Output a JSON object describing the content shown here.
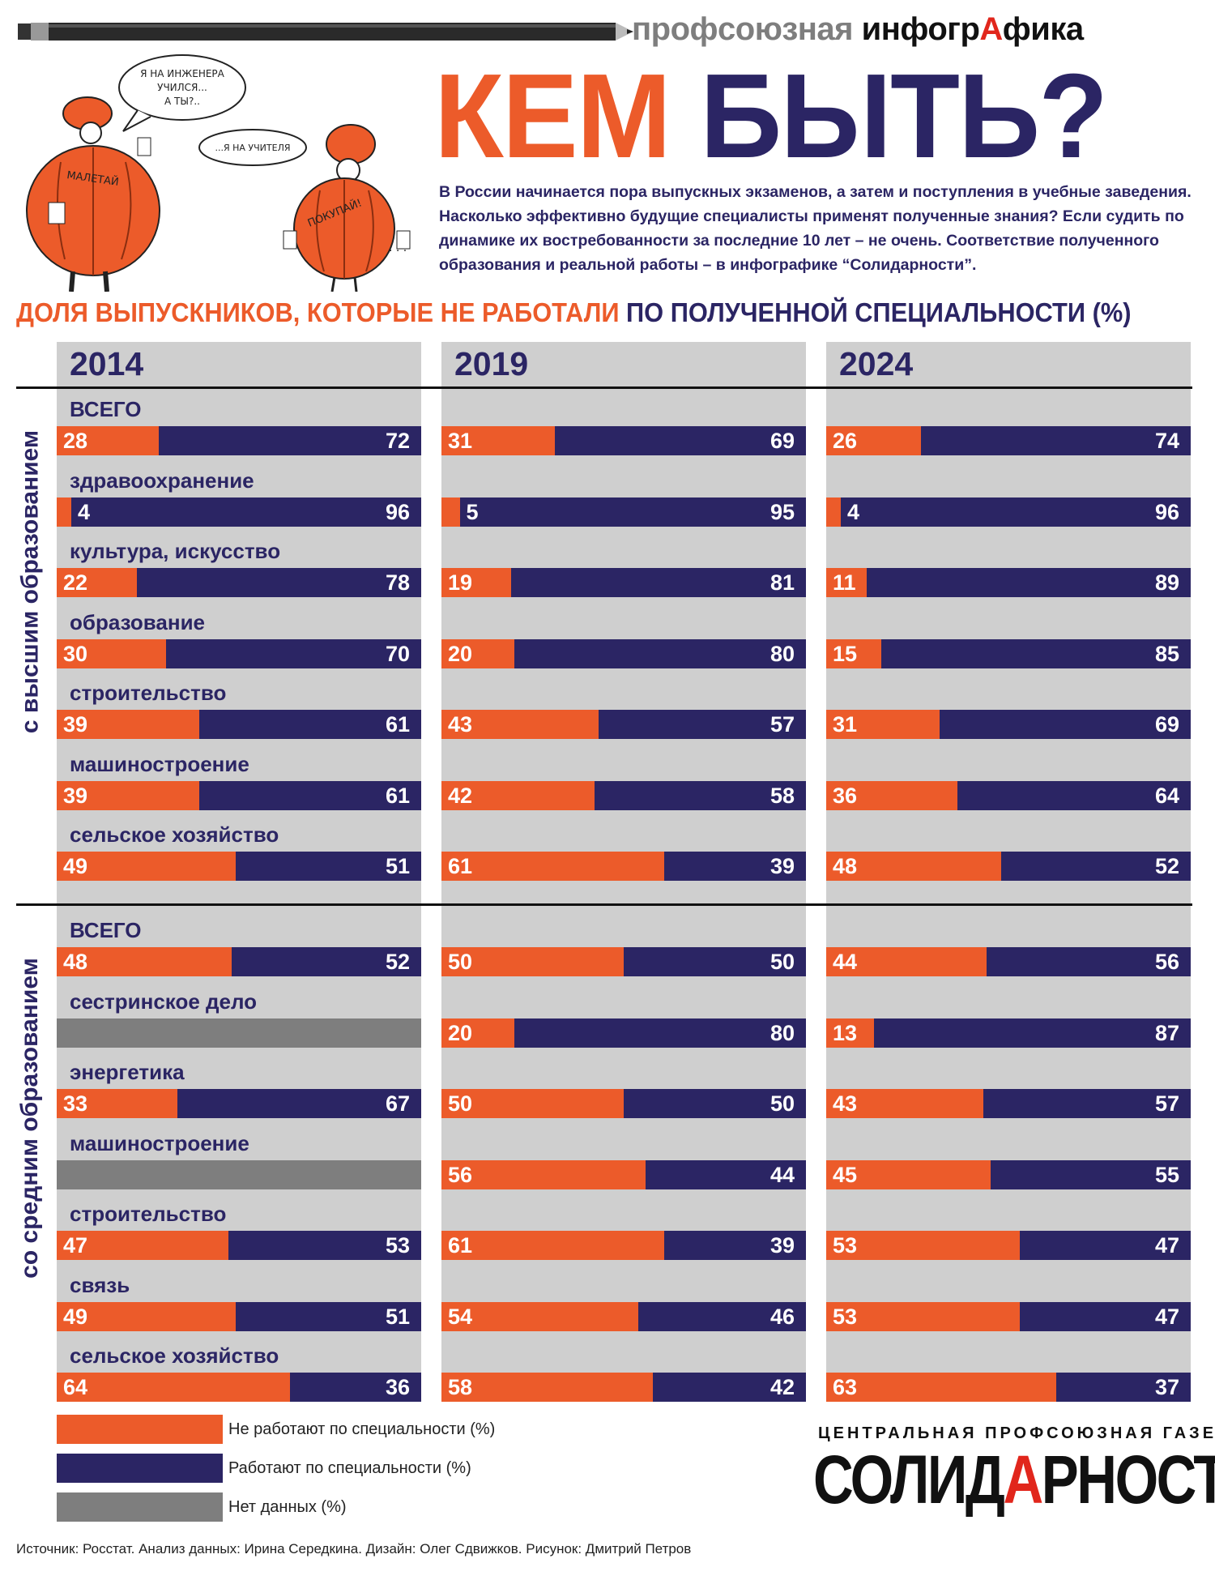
{
  "header": {
    "brand_part1": "профсоюзная",
    "brand_part2a": "инфогр",
    "brand_part2b": "А",
    "brand_part2c": "фика"
  },
  "illustration": {
    "bubble1": [
      "Я НА ИНЖЕНЕРА",
      "УЧИЛСЯ...",
      "А ТЫ?.."
    ],
    "bubble2": "...Я НА УЧИТЕЛЯ",
    "sign_left": "МАЛЕТАЙ",
    "sign_right": "ПОКУПАЙ!",
    "dots": ". . ."
  },
  "title": {
    "word1": "КЕМ",
    "word2": "БЫТЬ?"
  },
  "intro": "В России начинается пора выпускных экзаменов, а затем и поступления в учебные заведения. Насколько эффективно будущие специалисты применят полученные знания? Если судить по динамике их востребованности за последние 10 лет – не очень. Соответствие полученного образования и реальной работы – в инфографике “Солидарности”.",
  "subtitle": {
    "part1": "ДОЛЯ ВЫПУСКНИКОВ, КОТОРЫЕ НЕ РАБОТАЛИ",
    "part2": "ПО ПОЛУЧЕННОЙ СПЕЦИАЛЬНОСТИ (%)"
  },
  "chart_data": {
    "type": "bar",
    "stacked": true,
    "orientation": "horizontal",
    "years": [
      "2014",
      "2019",
      "2024"
    ],
    "series": [
      {
        "name": "Не работают по специальности (%)",
        "color": "#ec5b2a"
      },
      {
        "name": "Работают по специальности (%)",
        "color": "#2b2564"
      },
      {
        "name": "Нет данных (%)",
        "color": "#7e7e7e"
      }
    ],
    "sections": [
      {
        "label": "с высшим образованием",
        "categories": [
          {
            "name": "ВСЕГО",
            "values": [
              [
                28,
                72
              ],
              [
                31,
                69
              ],
              [
                26,
                74
              ]
            ]
          },
          {
            "name": "здравоохранение",
            "values": [
              [
                4,
                96
              ],
              [
                5,
                95
              ],
              [
                4,
                96
              ]
            ]
          },
          {
            "name": "культура, искусство",
            "values": [
              [
                22,
                78
              ],
              [
                19,
                81
              ],
              [
                11,
                89
              ]
            ]
          },
          {
            "name": "образование",
            "values": [
              [
                30,
                70
              ],
              [
                20,
                80
              ],
              [
                15,
                85
              ]
            ]
          },
          {
            "name": "строительство",
            "values": [
              [
                39,
                61
              ],
              [
                43,
                57
              ],
              [
                31,
                69
              ]
            ]
          },
          {
            "name": "машиностроение",
            "values": [
              [
                39,
                61
              ],
              [
                42,
                58
              ],
              [
                36,
                64
              ]
            ]
          },
          {
            "name": "сельское хозяйство",
            "values": [
              [
                49,
                51
              ],
              [
                61,
                39
              ],
              [
                48,
                52
              ]
            ]
          }
        ]
      },
      {
        "label": "со средним образованием",
        "categories": [
          {
            "name": "ВСЕГО",
            "values": [
              [
                48,
                52
              ],
              [
                50,
                50
              ],
              [
                44,
                56
              ]
            ]
          },
          {
            "name": "сестринское дело",
            "values": [
              null,
              [
                20,
                80
              ],
              [
                13,
                87
              ]
            ]
          },
          {
            "name": "энергетика",
            "values": [
              [
                33,
                67
              ],
              [
                50,
                50
              ],
              [
                43,
                57
              ]
            ]
          },
          {
            "name": "машиностроение",
            "values": [
              null,
              [
                56,
                44
              ],
              [
                45,
                55
              ]
            ]
          },
          {
            "name": "строительство",
            "values": [
              [
                47,
                53
              ],
              [
                61,
                39
              ],
              [
                53,
                47
              ]
            ]
          },
          {
            "name": "связь",
            "values": [
              [
                49,
                51
              ],
              [
                54,
                46
              ],
              [
                53,
                47
              ]
            ]
          },
          {
            "name": "сельское хозяйство",
            "values": [
              [
                64,
                36
              ],
              [
                58,
                42
              ],
              [
                63,
                37
              ]
            ]
          }
        ]
      }
    ]
  },
  "footer": {
    "paper_top": "ЦЕНТРАЛЬНАЯ ПРОФСОЮЗНАЯ ГАЗЕТА",
    "paper_name_a": "СОЛИД",
    "paper_name_b": "А",
    "paper_name_c": "РНОСТЬ",
    "source": "Источник: Росстат. Анализ данных: Ирина Середкина. Дизайн: Олег Сдвижков. Рисунок: Дмитрий Петров"
  }
}
